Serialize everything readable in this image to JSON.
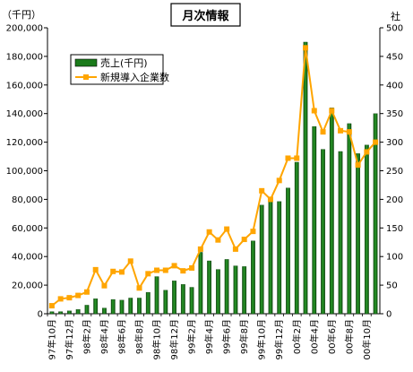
{
  "chart_data": {
    "type": "bar",
    "title": "月次情報",
    "y_left_unit": "（千円）",
    "y_right_unit": "社",
    "ylim_left": [
      0,
      200000
    ],
    "ylim_right": [
      0,
      500
    ],
    "y_left_ticks": [
      "0",
      "20,000",
      "40,000",
      "60,000",
      "80,000",
      "100,000",
      "120,000",
      "140,000",
      "160,000",
      "180,000",
      "200,000"
    ],
    "y_right_ticks": [
      "0",
      "50",
      "100",
      "150",
      "200",
      "250",
      "300",
      "350",
      "400",
      "450",
      "500"
    ],
    "x_tick_labels": [
      "97年10月",
      "97年12月",
      "98年2月",
      "98年4月",
      "98年6月",
      "98年8月",
      "98年10月",
      "98年12月",
      "99年2月",
      "99年4月",
      "99年6月",
      "99年8月",
      "99年10月",
      "99年12月",
      "00年2月",
      "00年4月",
      "00年6月",
      "00年8月",
      "00年10月"
    ],
    "categories": [
      "97年10月",
      "97年11月",
      "97年12月",
      "98年1月",
      "98年2月",
      "98年3月",
      "98年4月",
      "98年5月",
      "98年6月",
      "98年7月",
      "98年8月",
      "98年9月",
      "98年10月",
      "98年11月",
      "98年12月",
      "99年1月",
      "99年2月",
      "99年3月",
      "99年4月",
      "99年5月",
      "99年6月",
      "99年7月",
      "99年8月",
      "99年9月",
      "99年10月",
      "99年11月",
      "99年12月",
      "00年1月",
      "00年2月",
      "00年3月",
      "00年4月",
      "00年5月",
      "00年6月",
      "00年7月",
      "00年8月",
      "00年9月",
      "00年10月",
      "00年11月"
    ],
    "legend_position": "top-left",
    "series": [
      {
        "name": "売上(千円)",
        "type": "bar",
        "axis": "left",
        "color": "#1a7a1a",
        "values": [
          1500,
          1500,
          2000,
          3000,
          6000,
          10500,
          4000,
          10000,
          9500,
          11000,
          11000,
          15000,
          26000,
          16500,
          23000,
          20500,
          18500,
          43000,
          37000,
          31000,
          38000,
          33500,
          33000,
          51000,
          76000,
          78500,
          78500,
          88000,
          106000,
          190000,
          131000,
          115000,
          144000,
          113500,
          133000,
          112000,
          118000,
          140000
        ]
      },
      {
        "name": "新規導入企業数",
        "type": "line",
        "axis": "right",
        "color": "#ffa500",
        "values": [
          14,
          26,
          28,
          32,
          38,
          77,
          49,
          74,
          73,
          92,
          45,
          70,
          76,
          76,
          84,
          75,
          80,
          113,
          143,
          129,
          148,
          113,
          130,
          144,
          215,
          200,
          233,
          272,
          272,
          465,
          355,
          318,
          355,
          320,
          318,
          260,
          283,
          300
        ]
      }
    ],
    "grid": false
  }
}
